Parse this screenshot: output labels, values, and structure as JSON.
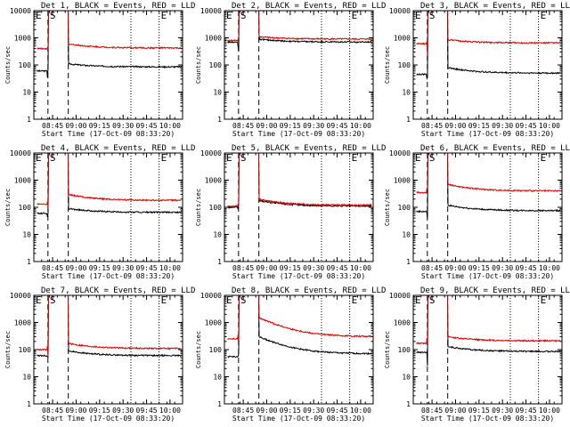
{
  "colors": {
    "events": "#000000",
    "lld": "#e00000",
    "axis": "#000000",
    "background": "#ffffff"
  },
  "chart_data": [
    {
      "type": "line",
      "title": "Det 1",
      "x_ticks": [
        "08:45",
        "09:00",
        "09:15",
        "09:30",
        "09:45",
        "10:00"
      ],
      "x_range_min": [
        0,
        95
      ],
      "xlabel": "Start Time (17-Oct-09 08:33:20)",
      "ylabel": "Counts/sec",
      "y_ticks": [
        "1",
        "10",
        "100",
        "1000",
        "10000"
      ],
      "ylim": [
        1,
        10000
      ],
      "markers": [
        "E",
        "S",
        "E"
      ],
      "marker_positions_min": [
        -12,
        9,
        80
      ],
      "dashed_min": [
        9,
        22
      ],
      "dotted_min": [
        62,
        80
      ],
      "series": [
        {
          "name": "BLACK = Events",
          "color": "#000000",
          "before": 60,
          "after": 110,
          "tail": 85
        },
        {
          "name": "RED = LLD",
          "color": "#e00000",
          "before": 400,
          "after": 600,
          "tail": 420
        }
      ]
    },
    {
      "type": "line",
      "title": "Det 2",
      "x_ticks": [
        "08:45",
        "09:00",
        "09:15",
        "09:30",
        "09:45",
        "10:00"
      ],
      "x_range_min": [
        0,
        95
      ],
      "xlabel": "Start Time (17-Oct-09 08:33:20)",
      "ylabel": "Counts/sec",
      "y_ticks": [
        "1",
        "10",
        "100",
        "1000",
        "10000"
      ],
      "ylim": [
        1,
        10000
      ],
      "markers": [
        "E",
        "S",
        "E"
      ],
      "marker_positions_min": [
        -12,
        9,
        80
      ],
      "dashed_min": [
        9,
        22
      ],
      "dotted_min": [
        62,
        80
      ],
      "series": [
        {
          "name": "BLACK = Events",
          "color": "#000000",
          "before": 700,
          "after": 900,
          "tail": 700
        },
        {
          "name": "RED = LLD",
          "color": "#e00000",
          "before": 800,
          "after": 1100,
          "tail": 900
        }
      ]
    },
    {
      "type": "line",
      "title": "Det 3",
      "x_ticks": [
        "08:45",
        "09:00",
        "09:15",
        "09:30",
        "09:45",
        "10:00"
      ],
      "x_range_min": [
        0,
        95
      ],
      "xlabel": "Start Time (17-Oct-09 08:33:20)",
      "ylabel": "Counts/sec",
      "y_ticks": [
        "1",
        "10",
        "100",
        "1000",
        "10000"
      ],
      "ylim": [
        1,
        10000
      ],
      "markers": [
        "E",
        "S",
        "E"
      ],
      "marker_positions_min": [
        -12,
        9,
        80
      ],
      "dashed_min": [
        9,
        22
      ],
      "dotted_min": [
        62,
        80
      ],
      "series": [
        {
          "name": "BLACK = Events",
          "color": "#000000",
          "before": 45,
          "after": 80,
          "tail": 50
        },
        {
          "name": "RED = LLD",
          "color": "#e00000",
          "before": 600,
          "after": 850,
          "tail": 650
        }
      ]
    },
    {
      "type": "line",
      "title": "Det 4",
      "x_ticks": [
        "08:45",
        "09:00",
        "09:15",
        "09:30",
        "09:45",
        "10:00"
      ],
      "x_range_min": [
        0,
        95
      ],
      "xlabel": "Start Time (17-Oct-09 08:33:20)",
      "ylabel": "Counts/sec",
      "y_ticks": [
        "1",
        "10",
        "100",
        "1000",
        "10000"
      ],
      "ylim": [
        1,
        10000
      ],
      "markers": [
        "E",
        "S",
        "E"
      ],
      "marker_positions_min": [
        -12,
        9,
        80
      ],
      "dashed_min": [
        9,
        22
      ],
      "dotted_min": [
        62,
        80
      ],
      "series": [
        {
          "name": "BLACK = Events",
          "color": "#000000",
          "before": 60,
          "after": 90,
          "tail": 65
        },
        {
          "name": "RED = LLD",
          "color": "#e00000",
          "before": 130,
          "after": 300,
          "tail": 180
        }
      ]
    },
    {
      "type": "line",
      "title": "Det 5",
      "x_ticks": [
        "08:45",
        "09:00",
        "09:15",
        "09:30",
        "09:45",
        "10:00"
      ],
      "x_range_min": [
        0,
        95
      ],
      "xlabel": "Start Time (17-Oct-09 08:33:20)",
      "ylabel": "Counts/sec",
      "y_ticks": [
        "1",
        "10",
        "100",
        "1000",
        "10000"
      ],
      "ylim": [
        1,
        10000
      ],
      "markers": [
        "E",
        "S",
        "E"
      ],
      "marker_positions_min": [
        -12,
        9,
        80
      ],
      "dashed_min": [
        9,
        22
      ],
      "dotted_min": [
        62,
        80
      ],
      "series": [
        {
          "name": "BLACK = Events",
          "color": "#000000",
          "before": 100,
          "after": 180,
          "tail": 110
        },
        {
          "name": "RED = LLD",
          "color": "#e00000",
          "before": 110,
          "after": 200,
          "tail": 120
        }
      ]
    },
    {
      "type": "line",
      "title": "Det 6",
      "x_ticks": [
        "08:45",
        "09:00",
        "09:15",
        "09:30",
        "09:45",
        "10:00"
      ],
      "x_range_min": [
        0,
        95
      ],
      "xlabel": "Start Time (17-Oct-09 08:33:20)",
      "ylabel": "Counts/sec",
      "y_ticks": [
        "1",
        "10",
        "100",
        "1000",
        "10000"
      ],
      "ylim": [
        1,
        10000
      ],
      "markers": [
        "E",
        "S",
        "E"
      ],
      "marker_positions_min": [
        -12,
        9,
        80
      ],
      "dashed_min": [
        9,
        22
      ],
      "dotted_min": [
        62,
        80
      ],
      "series": [
        {
          "name": "BLACK = Events",
          "color": "#000000",
          "before": 70,
          "after": 120,
          "tail": 75
        },
        {
          "name": "RED = LLD",
          "color": "#e00000",
          "before": 350,
          "after": 700,
          "tail": 400
        }
      ]
    },
    {
      "type": "line",
      "title": "Det 7",
      "x_ticks": [
        "08:45",
        "09:00",
        "09:15",
        "09:30",
        "09:45",
        "10:00"
      ],
      "x_range_min": [
        0,
        95
      ],
      "xlabel": "Start Time (17-Oct-09 08:33:20)",
      "ylabel": "Counts/sec",
      "y_ticks": [
        "1",
        "10",
        "100",
        "1000",
        "10000"
      ],
      "ylim": [
        1,
        10000
      ],
      "markers": [
        "E",
        "S",
        "E"
      ],
      "marker_positions_min": [
        -12,
        9,
        80
      ],
      "dashed_min": [
        9,
        22
      ],
      "dotted_min": [
        62,
        80
      ],
      "series": [
        {
          "name": "BLACK = Events",
          "color": "#000000",
          "before": 60,
          "after": 90,
          "tail": 60
        },
        {
          "name": "RED = LLD",
          "color": "#e00000",
          "before": 100,
          "after": 170,
          "tail": 110
        }
      ]
    },
    {
      "type": "line",
      "title": "Det 8",
      "x_ticks": [
        "08:45",
        "09:00",
        "09:15",
        "09:30",
        "09:45",
        "10:00"
      ],
      "x_range_min": [
        0,
        95
      ],
      "xlabel": "Start Time (17-Oct-09 08:33:20)",
      "ylabel": "Counts/sec",
      "y_ticks": [
        "1",
        "10",
        "100",
        "1000",
        "10000"
      ],
      "ylim": [
        1,
        10000
      ],
      "markers": [
        "E",
        "S",
        "E"
      ],
      "marker_positions_min": [
        -12,
        9,
        80
      ],
      "dashed_min": [
        9,
        22
      ],
      "dotted_min": [
        62,
        80
      ],
      "series": [
        {
          "name": "BLACK = Events",
          "color": "#000000",
          "before": 55,
          "after": 300,
          "tail": 70
        },
        {
          "name": "RED = LLD",
          "color": "#e00000",
          "before": 250,
          "after": 1500,
          "tail": 300
        }
      ]
    },
    {
      "type": "line",
      "title": "Det 9",
      "x_ticks": [
        "08:45",
        "09:00",
        "09:15",
        "09:30",
        "09:45",
        "10:00"
      ],
      "x_range_min": [
        0,
        95
      ],
      "xlabel": "Start Time (17-Oct-09 08:33:20)",
      "ylabel": "Counts/sec",
      "y_ticks": [
        "1",
        "10",
        "100",
        "1000",
        "10000"
      ],
      "ylim": [
        1,
        10000
      ],
      "markers": [
        "E",
        "S",
        "E"
      ],
      "marker_positions_min": [
        -12,
        9,
        80
      ],
      "dashed_min": [
        9,
        22
      ],
      "dotted_min": [
        62,
        80
      ],
      "series": [
        {
          "name": "BLACK = Events",
          "color": "#000000",
          "before": 80,
          "after": 130,
          "tail": 85
        },
        {
          "name": "RED = LLD",
          "color": "#e00000",
          "before": 170,
          "after": 300,
          "tail": 210
        }
      ]
    }
  ],
  "title_suffix": ", BLACK = Events, RED = LLD"
}
